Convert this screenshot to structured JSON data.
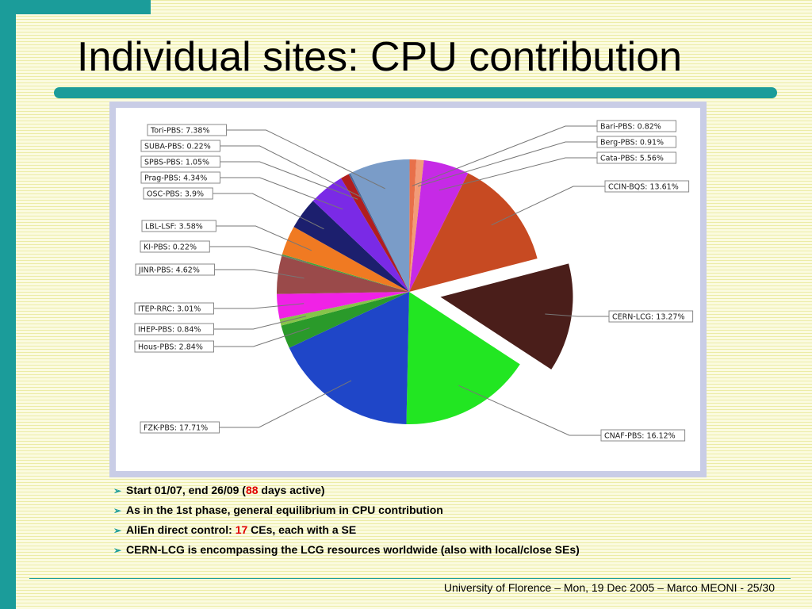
{
  "slide": {
    "title": "Individual sites: CPU contribution",
    "footer": "University of Florence – Mon, 19 Dec 2005 – Marco MEONI - 25/30"
  },
  "bullets": [
    {
      "pre": "Start 01/07, end 26/09 (",
      "highlight": "88",
      "post": " days active)"
    },
    {
      "pre": "As in the 1st phase, general equilibrium in CPU contribution",
      "highlight": "",
      "post": ""
    },
    {
      "pre": "AliEn direct control: ",
      "highlight": "17",
      "post": " CEs, each with a SE"
    },
    {
      "pre": "CERN-LCG is encompassing the LCG resources worldwide (also with local/close SEs)",
      "highlight": "",
      "post": ""
    }
  ],
  "colors": {
    "accent": "#1b9c9a",
    "highlight": "#e00000"
  },
  "chart_data": {
    "type": "pie",
    "title": "",
    "slices": [
      {
        "label": "Bari-PBS: 0.82%",
        "value": 0.82,
        "color": "#e8704a"
      },
      {
        "label": "Berg-PBS: 0.91%",
        "value": 0.91,
        "color": "#f29b78"
      },
      {
        "label": "Cata-PBS: 5.56%",
        "value": 5.56,
        "color": "#c62ae6"
      },
      {
        "label": "CCIN-BQS: 13.61%",
        "value": 13.61,
        "color": "#c74a22"
      },
      {
        "label": "CERN-LCG: 13.27%",
        "value": 13.27,
        "color": "#4a1e1a",
        "exploded": true
      },
      {
        "label": "CNAF-PBS: 16.12%",
        "value": 16.12,
        "color": "#22e622"
      },
      {
        "label": "FZK-PBS: 17.71%",
        "value": 17.71,
        "color": "#1f46c8"
      },
      {
        "label": "Hous-PBS: 2.84%",
        "value": 2.84,
        "color": "#2a9a2a"
      },
      {
        "label": "IHEP-PBS: 0.84%",
        "value": 0.84,
        "color": "#86c44a"
      },
      {
        "label": "ITEP-RRC: 3.01%",
        "value": 3.01,
        "color": "#f022e6"
      },
      {
        "label": "JINR-PBS: 4.62%",
        "value": 4.62,
        "color": "#9a4a4a"
      },
      {
        "label": "KI-PBS: 0.22%",
        "value": 0.22,
        "color": "#3aa83a"
      },
      {
        "label": "LBL-LSF: 3.58%",
        "value": 3.58,
        "color": "#f07a22"
      },
      {
        "label": "OSC-PBS: 3.9%",
        "value": 3.9,
        "color": "#1c1f6e"
      },
      {
        "label": "Prag-PBS: 4.34%",
        "value": 4.34,
        "color": "#7a2ae6"
      },
      {
        "label": "SPBS-PBS: 1.05%",
        "value": 1.05,
        "color": "#b01e1e"
      },
      {
        "label": "SUBA-PBS: 0.22%",
        "value": 0.22,
        "color": "#4a6a9a"
      },
      {
        "label": "Tori-PBS: 7.38%",
        "value": 7.38,
        "color": "#7a9cc8"
      }
    ]
  }
}
